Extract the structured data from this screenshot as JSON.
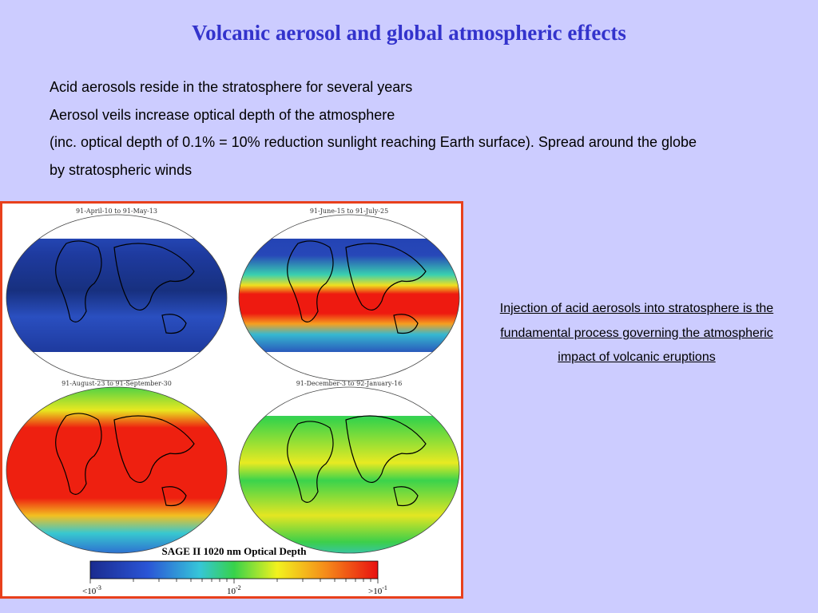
{
  "slide": {
    "title": "Volcanic aerosol and global atmospheric effects",
    "bullets": [
      "Acid aerosols reside in the stratosphere for several years",
      "Aerosol veils increase optical depth of the atmosphere",
      "(inc. optical depth of 0.1% = 10% reduction sunlight reaching Earth surface). Spread around the globe",
      "by stratospheric winds"
    ],
    "caption": "Injection of acid aerosols into stratosphere is the fundamental process governing the atmospheric impact of volcanic eruptions"
  },
  "figure": {
    "maps": [
      {
        "label": "91-April-10 to 91-May-13"
      },
      {
        "label": "91-June-15 to 91-July-25"
      },
      {
        "label": "91-August-23 to 91-September-30"
      },
      {
        "label": "91-December-3 to 92-January-16"
      }
    ],
    "colorbar": {
      "title": "SAGE II 1020 nm Optical Depth",
      "tick_min": "<10",
      "tick_min_exp": "-3",
      "tick_mid": "10",
      "tick_mid_exp": "-2",
      "tick_max": ">10",
      "tick_max_exp": "-1"
    },
    "colors": {
      "frame": "#e8401c",
      "low": "#2233aa",
      "high": "#ee1111"
    }
  }
}
